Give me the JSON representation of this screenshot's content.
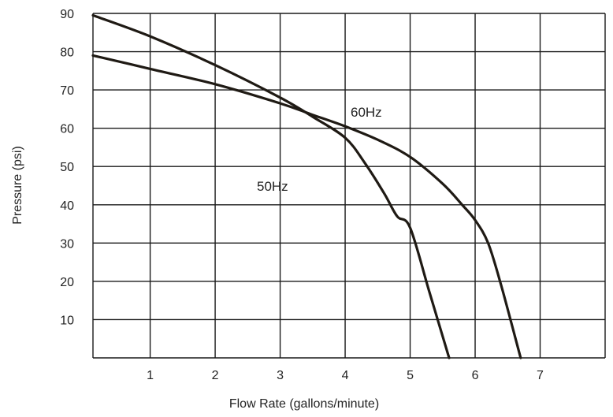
{
  "chart_data": {
    "type": "line",
    "title": "",
    "xlabel": "Flow Rate (gallons/minute)",
    "ylabel": "Pressure (psi)",
    "xlim": [
      0.12,
      8.0
    ],
    "ylim": [
      0,
      90
    ],
    "x_ticks": [
      1,
      2,
      3,
      4,
      5,
      6,
      7
    ],
    "x_tick_labels": [
      "1",
      "2",
      "3",
      "4",
      "5",
      "6",
      "7"
    ],
    "y_ticks": [
      10,
      20,
      30,
      40,
      50,
      60,
      70,
      80,
      90
    ],
    "y_tick_labels": [
      "10",
      "20",
      "30",
      "40",
      "50",
      "60",
      "70",
      "80",
      "90"
    ],
    "grid": true,
    "line_color": "#1f1a14",
    "series": [
      {
        "name": "50Hz",
        "x": [
          0.12,
          1.0,
          2.0,
          3.0,
          3.5,
          4.0,
          4.3,
          4.6,
          4.8,
          5.0,
          5.3,
          5.6
        ],
        "y": [
          89.5,
          84,
          76.5,
          68,
          63,
          57.5,
          51,
          43,
          37,
          34,
          17,
          0
        ]
      },
      {
        "name": "60Hz",
        "x": [
          0.12,
          1.0,
          2.0,
          3.0,
          3.5,
          4.0,
          4.5,
          5.0,
          5.5,
          5.8,
          6.0,
          6.2,
          6.4,
          6.7
        ],
        "y": [
          79,
          75.5,
          71.5,
          66.5,
          63.5,
          60.5,
          57,
          52.5,
          45.5,
          40,
          36,
          30,
          19,
          0
        ]
      }
    ],
    "annotations": [
      "60Hz",
      "50Hz"
    ]
  }
}
